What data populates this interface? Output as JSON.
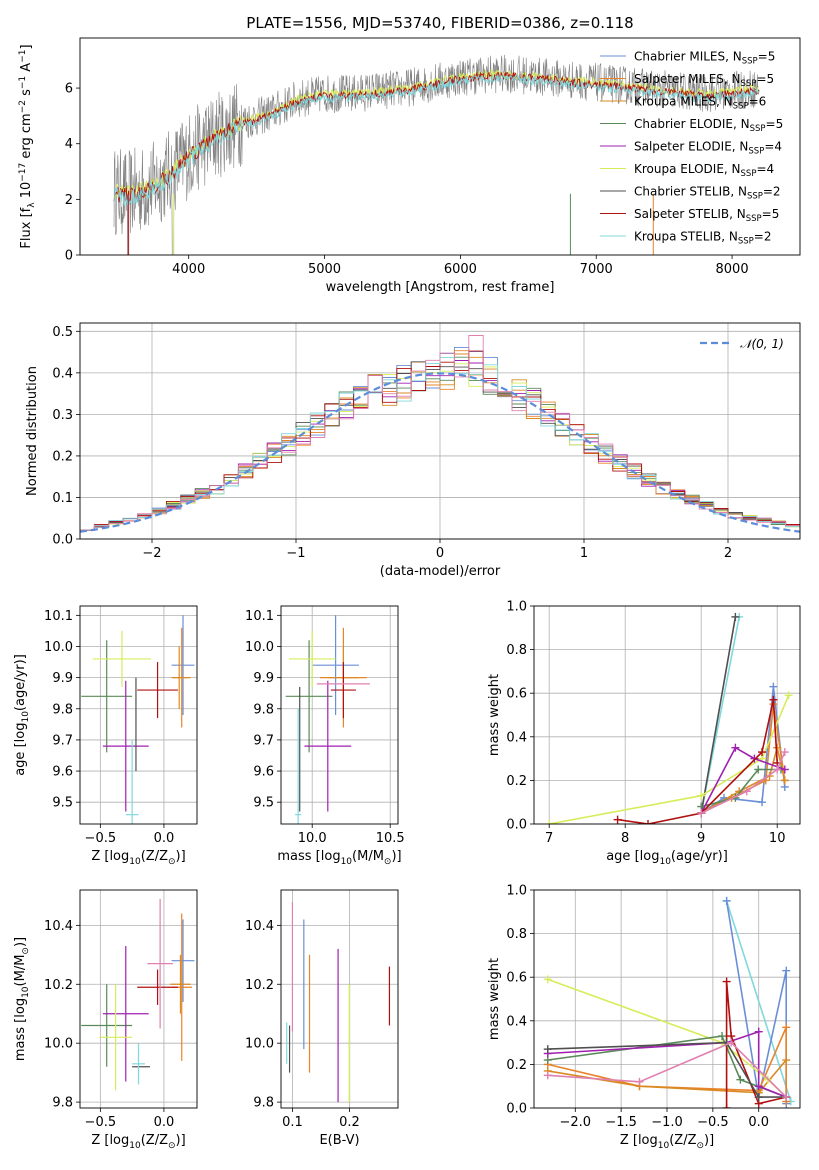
{
  "figure": {
    "title": "PLATE=1556, MJD=53740, FIBERID=0386, z=0.118"
  },
  "colors": {
    "Chabrier MILES": "#6a8fd6",
    "Salpeter MILES": "#e8832a",
    "Kroupa MILES": "#d98a22",
    "Chabrier ELODIE": "#5a8a5a",
    "Salpeter ELODIE": "#a020b0",
    "Kroupa ELODIE": "#d8ec5a",
    "Chabrier STELIB": "#505050",
    "Salpeter STELIB": "#b01010",
    "Kroupa STELIB": "#80d8dc",
    "extra_pink": "#e080b0",
    "gaussian": "#5b8dd9",
    "data_spectrum": "#808080"
  },
  "chart_data": [
    {
      "id": "spectrum",
      "type": "line",
      "xlabel": "wavelength [Angstrom, rest frame]",
      "ylabel": "Flux [f_λ 10^-17 erg cm^-2 s^-1 A^-1]",
      "xlim": [
        3200,
        8500
      ],
      "ylim": [
        0,
        7.8
      ],
      "xticks": [
        4000,
        5000,
        6000,
        7000,
        8000
      ],
      "yticks": [
        0,
        2,
        4,
        6
      ],
      "grid": false,
      "legend_position": "top-right",
      "legend": [
        {
          "label": "Chabrier MILES, N",
          "sub": "SSP",
          "eq": "=5"
        },
        {
          "label": "Salpeter MILES, N",
          "sub": "SSP",
          "eq": "=5"
        },
        {
          "label": "Kroupa MILES, N",
          "sub": "SSP",
          "eq": "=6"
        },
        {
          "label": "Chabrier ELODIE, N",
          "sub": "SSP",
          "eq": "=5"
        },
        {
          "label": "Salpeter ELODIE, N",
          "sub": "SSP",
          "eq": "=4"
        },
        {
          "label": "Kroupa ELODIE, N",
          "sub": "SSP",
          "eq": "=4"
        },
        {
          "label": "Chabrier STELIB, N",
          "sub": "SSP",
          "eq": "=2"
        },
        {
          "label": "Salpeter STELIB, N",
          "sub": "SSP",
          "eq": "=5"
        },
        {
          "label": "Kroupa STELIB, N",
          "sub": "SSP",
          "eq": "=2"
        }
      ],
      "continuum": {
        "x": [
          3450,
          3550,
          3700,
          3850,
          4000,
          4200,
          4400,
          4600,
          4800,
          5000,
          5200,
          5400,
          5600,
          5800,
          6000,
          6200,
          6400,
          6600,
          6800,
          7000,
          7200,
          7400,
          7600,
          7800,
          8000,
          8200
        ],
        "y": [
          2.3,
          2.2,
          2.4,
          2.9,
          3.6,
          4.3,
          4.8,
          5.1,
          5.6,
          5.8,
          5.8,
          5.9,
          6.0,
          6.2,
          6.4,
          6.5,
          6.5,
          6.4,
          6.3,
          6.2,
          6.1,
          6.0,
          5.9,
          5.8,
          5.9,
          6.0
        ]
      }
    },
    {
      "id": "residual_histogram",
      "type": "bar",
      "xlabel": "(data-model)/error",
      "ylabel": "Normed distribution",
      "xlim": [
        -2.5,
        2.5
      ],
      "ylim": [
        0,
        0.52
      ],
      "xticks": [
        -2,
        -1,
        0,
        1,
        2
      ],
      "yticks": [
        0.0,
        0.1,
        0.2,
        0.3,
        0.4,
        0.5
      ],
      "grid": true,
      "legend_position": "top-right",
      "legend": [
        "𝒩(0, 1)"
      ],
      "bin_width": 0.1,
      "envelope": {
        "x": [
          -2.5,
          -2.0,
          -1.5,
          -1.0,
          -0.5,
          0.0,
          0.2,
          0.5,
          1.0,
          1.5,
          2.0,
          2.5
        ],
        "y": [
          0.02,
          0.06,
          0.13,
          0.24,
          0.35,
          0.4,
          0.42,
          0.36,
          0.24,
          0.13,
          0.06,
          0.03
        ]
      }
    },
    {
      "id": "age_vs_Z",
      "type": "scatter",
      "xlabel": "Z [log10(Z/Z⊙)]",
      "ylabel": "age [log10(age/yr)]",
      "xlim": [
        -0.66,
        0.26
      ],
      "ylim": [
        9.43,
        10.13
      ],
      "xticks": [
        -0.5,
        0.0
      ],
      "yticks": [
        9.5,
        9.6,
        9.7,
        9.8,
        9.9,
        10.0,
        10.1
      ],
      "grid": true,
      "crosses": [
        {
          "model": "Chabrier MILES",
          "x": 0.15,
          "xerr": 0.09,
          "y": 9.94,
          "yerr": 0.16
        },
        {
          "model": "Salpeter MILES",
          "x": 0.14,
          "xerr": 0.07,
          "y": 9.9,
          "yerr": 0.16
        },
        {
          "model": "Kroupa MILES",
          "x": 0.12,
          "xerr": 0.06,
          "y": 9.9,
          "yerr": 0.1
        },
        {
          "model": "Chabrier ELODIE",
          "x": -0.45,
          "xerr": 0.2,
          "y": 9.84,
          "yerr": 0.18
        },
        {
          "model": "Salpeter ELODIE",
          "x": -0.3,
          "xerr": 0.18,
          "y": 9.68,
          "yerr": 0.21
        },
        {
          "model": "Kroupa ELODIE",
          "x": -0.33,
          "xerr": 0.23,
          "y": 9.96,
          "yerr": 0.09
        },
        {
          "model": "Chabrier STELIB",
          "x": -0.22,
          "xerr": 0.0,
          "y": 9.75,
          "yerr": 0.15
        },
        {
          "model": "Salpeter STELIB",
          "x": -0.05,
          "xerr": 0.16,
          "y": 9.86,
          "yerr": 0.09
        },
        {
          "model": "Kroupa STELIB",
          "x": -0.25,
          "xerr": 0.05,
          "y": 9.46,
          "yerr": 0.24
        }
      ]
    },
    {
      "id": "age_vs_mass",
      "type": "scatter",
      "xlabel": "mass [log10(M/M⊙)]",
      "ylabel": "",
      "xlim": [
        9.8,
        10.55
      ],
      "ylim": [
        9.43,
        10.13
      ],
      "xticks": [
        10.0,
        10.5
      ],
      "yticks": [
        9.5,
        9.6,
        9.7,
        9.8,
        9.9,
        10.0,
        10.1
      ],
      "grid": true,
      "crosses": [
        {
          "model": "Chabrier MILES",
          "x": 10.15,
          "xerr": 0.15,
          "y": 9.94,
          "yerr": 0.16
        },
        {
          "model": "Salpeter MILES",
          "x": 10.2,
          "xerr": 0.15,
          "y": 9.9,
          "yerr": 0.16
        },
        {
          "model": "Kroupa MILES",
          "x": 10.2,
          "xerr": 0.1,
          "y": 9.9,
          "yerr": 0.1
        },
        {
          "model": "Chabrier ELODIE",
          "x": 9.98,
          "xerr": 0.15,
          "y": 9.84,
          "yerr": 0.18
        },
        {
          "model": "Salpeter ELODIE",
          "x": 10.1,
          "xerr": 0.15,
          "y": 9.68,
          "yerr": 0.21
        },
        {
          "model": "Kroupa ELODIE",
          "x": 10.0,
          "xerr": 0.15,
          "y": 9.96,
          "yerr": 0.09
        },
        {
          "model": "Chabrier STELIB",
          "x": 9.92,
          "xerr": 0.0,
          "y": 9.67,
          "yerr": 0.2
        },
        {
          "model": "Salpeter STELIB",
          "x": 10.2,
          "xerr": 0.08,
          "y": 9.86,
          "yerr": 0.09
        },
        {
          "model": "Kroupa STELIB",
          "x": 9.91,
          "xerr": 0.02,
          "y": 9.46,
          "yerr": 0.34
        },
        {
          "model": "extra_pink",
          "x": 10.2,
          "xerr": 0.17,
          "y": 9.88,
          "yerr": 0.0
        }
      ]
    },
    {
      "id": "massweight_vs_age",
      "type": "line",
      "xlabel": "age [log10(age/yr)]",
      "ylabel": "mass weight",
      "xlim": [
        6.8,
        10.3
      ],
      "ylim": [
        0.0,
        1.0
      ],
      "xticks": [
        7,
        8,
        9,
        10
      ],
      "yticks": [
        0.0,
        0.2,
        0.4,
        0.6,
        0.8,
        1.0
      ],
      "grid": true,
      "series": [
        {
          "model": "Kroupa STELIB",
          "x": [
            9.0,
            9.5
          ],
          "y": [
            0.05,
            0.95
          ]
        },
        {
          "model": "Chabrier STELIB",
          "x": [
            9.0,
            9.45
          ],
          "y": [
            0.05,
            0.95
          ]
        },
        {
          "model": "Chabrier MILES",
          "x": [
            9.0,
            9.3,
            9.8,
            9.95,
            10.1
          ],
          "y": [
            0.05,
            0.12,
            0.1,
            0.63,
            0.17
          ]
        },
        {
          "model": "Salpeter MILES",
          "x": [
            9.0,
            9.4,
            9.85,
            9.95,
            10.1
          ],
          "y": [
            0.05,
            0.12,
            0.2,
            0.55,
            0.2
          ]
        },
        {
          "model": "Kroupa MILES",
          "x": [
            9.0,
            9.5,
            9.9,
            10.0,
            10.1
          ],
          "y": [
            0.05,
            0.15,
            0.22,
            0.35,
            0.2
          ]
        },
        {
          "model": "Kroupa ELODIE",
          "x": [
            7.0,
            9.0,
            9.8,
            10.15
          ],
          "y": [
            0.0,
            0.13,
            0.3,
            0.59
          ]
        },
        {
          "model": "Chabrier ELODIE",
          "x": [
            9.0,
            9.45,
            9.75,
            10.05
          ],
          "y": [
            0.08,
            0.12,
            0.25,
            0.25
          ]
        },
        {
          "model": "Salpeter ELODIE",
          "x": [
            9.0,
            9.45,
            9.7,
            10.1
          ],
          "y": [
            0.05,
            0.35,
            0.3,
            0.25
          ]
        },
        {
          "model": "Salpeter STELIB",
          "x": [
            7.9,
            8.3,
            9.0,
            9.8,
            9.95,
            10.0
          ],
          "y": [
            0.02,
            0.0,
            0.05,
            0.33,
            0.57,
            0.28
          ]
        },
        {
          "model": "extra_pink",
          "x": [
            9.0,
            9.6,
            10.0,
            10.1
          ],
          "y": [
            0.05,
            0.15,
            0.25,
            0.33
          ]
        }
      ]
    },
    {
      "id": "mass_vs_Z",
      "type": "scatter",
      "xlabel": "Z [log10(Z/Z⊙)]",
      "ylabel": "mass [log10(M/M⊙)]",
      "xlim": [
        -0.66,
        0.26
      ],
      "ylim": [
        9.78,
        10.52
      ],
      "xticks": [
        -0.5,
        0.0
      ],
      "yticks": [
        9.8,
        10.0,
        10.2,
        10.4
      ],
      "grid": true,
      "crosses": [
        {
          "model": "Chabrier MILES",
          "x": 0.15,
          "xerr": 0.09,
          "y": 10.28,
          "yerr": 0.14
        },
        {
          "model": "Salpeter MILES",
          "x": 0.14,
          "xerr": 0.08,
          "y": 10.19,
          "yerr": 0.25
        },
        {
          "model": "Kroupa MILES",
          "x": 0.13,
          "xerr": 0.08,
          "y": 10.2,
          "yerr": 0.1
        },
        {
          "model": "Chabrier ELODIE",
          "x": -0.45,
          "xerr": 0.2,
          "y": 10.06,
          "yerr": 0.14
        },
        {
          "model": "Salpeter ELODIE",
          "x": -0.3,
          "xerr": 0.18,
          "y": 10.1,
          "yerr": 0.23
        },
        {
          "model": "Kroupa ELODIE",
          "x": -0.38,
          "xerr": 0.13,
          "y": 10.02,
          "yerr": 0.18
        },
        {
          "model": "Chabrier STELIB",
          "x": -0.18,
          "xerr": 0.07,
          "y": 9.92,
          "yerr": 0.0
        },
        {
          "model": "Salpeter STELIB",
          "x": -0.05,
          "xerr": 0.16,
          "y": 10.19,
          "yerr": 0.06
        },
        {
          "model": "Kroupa STELIB",
          "x": -0.2,
          "xerr": 0.05,
          "y": 9.93,
          "yerr": 0.07
        },
        {
          "model": "extra_pink",
          "x": -0.03,
          "xerr": 0.1,
          "y": 10.27,
          "yerr": 0.22
        }
      ]
    },
    {
      "id": "mass_vs_EBV",
      "type": "scatter",
      "xlabel": "E(B-V)",
      "ylabel": "",
      "xlim": [
        0.08,
        0.285
      ],
      "ylim": [
        9.78,
        10.52
      ],
      "xticks": [
        0.1,
        0.2
      ],
      "yticks": [
        9.8,
        10.0,
        10.2,
        10.4
      ],
      "grid": true,
      "errorbars": [
        {
          "model": "Chabrier STELIB",
          "x": 0.095,
          "y": 9.98,
          "yerr": 0.08
        },
        {
          "model": "Kroupa STELIB",
          "x": 0.09,
          "y": 10.0,
          "yerr": 0.07
        },
        {
          "model": "extra_pink",
          "x": 0.1,
          "y": 10.26,
          "yerr": 0.22
        },
        {
          "model": "Chabrier MILES",
          "x": 0.12,
          "y": 10.2,
          "yerr": 0.22
        },
        {
          "model": "Salpeter MILES",
          "x": 0.13,
          "y": 10.1,
          "yerr": 0.2
        },
        {
          "model": "Salpeter ELODIE",
          "x": 0.18,
          "y": 10.06,
          "yerr": 0.26
        },
        {
          "model": "Chabrier ELODIE",
          "x": 0.2,
          "y": 10.0,
          "yerr": 0.2
        },
        {
          "model": "Kroupa ELODIE",
          "x": 0.2,
          "y": 10.0,
          "yerr": 0.2
        },
        {
          "model": "Salpeter STELIB",
          "x": 0.27,
          "y": 10.16,
          "yerr": 0.1
        }
      ]
    },
    {
      "id": "massweight_vs_Z",
      "type": "line",
      "xlabel": "Z [log10(Z/Z⊙)]",
      "ylabel": "mass weight",
      "xlim": [
        -2.45,
        0.45
      ],
      "ylim": [
        0.0,
        1.0
      ],
      "xticks": [
        -2.0,
        -1.5,
        -1.0,
        -0.5,
        0.0
      ],
      "yticks": [
        0.0,
        0.2,
        0.4,
        0.6,
        0.8,
        1.0
      ],
      "grid": true,
      "series": [
        {
          "model": "Kroupa STELIB",
          "x": [
            -0.35,
            0.35
          ],
          "y": [
            0.95,
            0.03
          ]
        },
        {
          "model": "Chabrier MILES",
          "x": [
            -0.35,
            0.0,
            0.3,
            0.3
          ],
          "y": [
            0.95,
            0.05,
            0.63,
            0.02
          ]
        },
        {
          "model": "Salpeter MILES",
          "x": [
            -2.3,
            -1.3,
            0.0,
            0.3,
            0.3
          ],
          "y": [
            0.2,
            0.1,
            0.08,
            0.37,
            0.03
          ]
        },
        {
          "model": "Kroupa MILES",
          "x": [
            -2.3,
            -1.3,
            0.0,
            0.3
          ],
          "y": [
            0.17,
            0.1,
            0.07,
            0.22
          ]
        },
        {
          "model": "Kroupa ELODIE",
          "x": [
            -2.3,
            -0.4,
            0.1,
            0.3
          ],
          "y": [
            0.59,
            0.3,
            0.13,
            0.05
          ]
        },
        {
          "model": "Chabrier ELODIE",
          "x": [
            -2.3,
            -0.4,
            -0.2,
            0.3
          ],
          "y": [
            0.22,
            0.33,
            0.13,
            0.05
          ]
        },
        {
          "model": "Salpeter ELODIE",
          "x": [
            -2.3,
            -0.35,
            0.0,
            0.0,
            0.3
          ],
          "y": [
            0.25,
            0.3,
            0.35,
            0.1,
            0.05
          ]
        },
        {
          "model": "Salpeter STELIB",
          "x": [
            -0.35,
            -0.35,
            -0.3,
            0.0,
            0.3
          ],
          "y": [
            0.0,
            0.58,
            0.33,
            0.02,
            0.05
          ]
        },
        {
          "model": "Chabrier STELIB",
          "x": [
            -2.3,
            -0.35,
            0.0,
            0.3
          ],
          "y": [
            0.27,
            0.3,
            0.05,
            0.05
          ]
        },
        {
          "model": "extra_pink",
          "x": [
            -2.3,
            -1.3,
            -0.3,
            0.3
          ],
          "y": [
            0.15,
            0.12,
            0.3,
            0.05
          ]
        }
      ]
    }
  ]
}
